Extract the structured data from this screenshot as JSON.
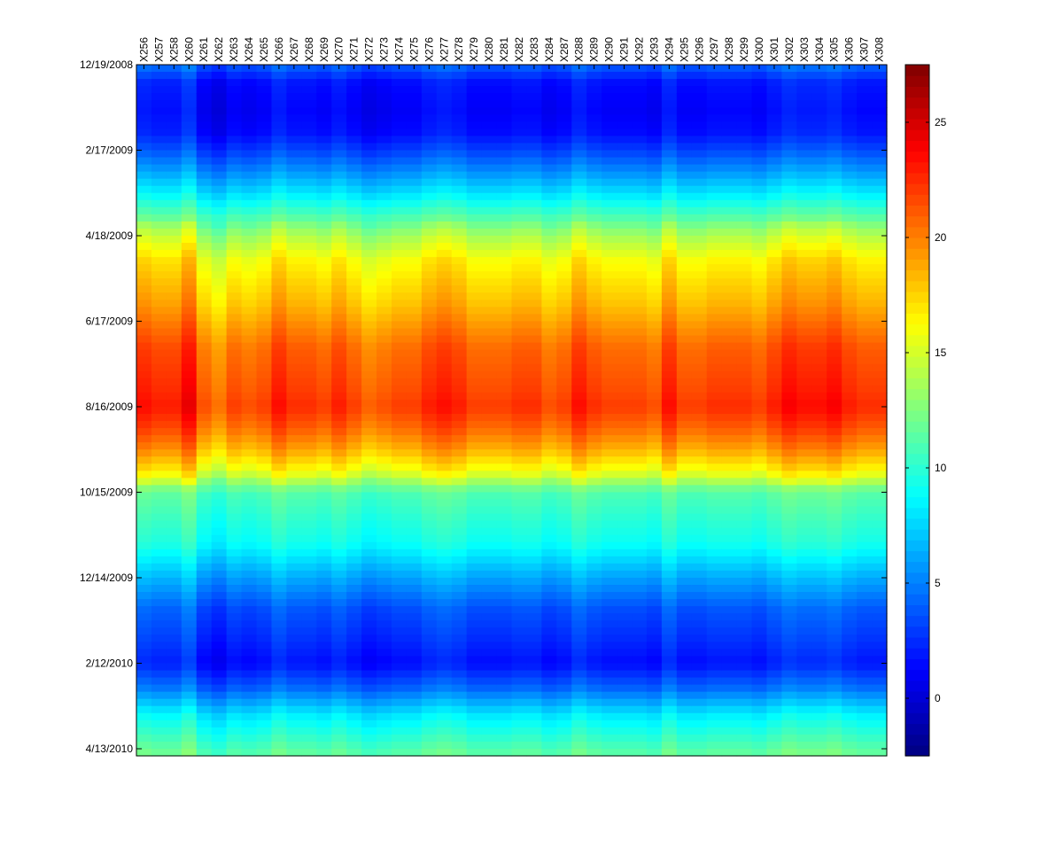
{
  "chart_data": {
    "type": "heatmap",
    "title": "",
    "xlabel": "",
    "ylabel": "",
    "columns": [
      "X256",
      "X257",
      "X258",
      "X260",
      "X261",
      "X262",
      "X263",
      "X264",
      "X265",
      "X266",
      "X267",
      "X268",
      "X269",
      "X270",
      "X271",
      "X272",
      "X273",
      "X274",
      "X275",
      "X276",
      "X277",
      "X278",
      "X279",
      "X280",
      "X281",
      "X282",
      "X283",
      "X284",
      "X287",
      "X288",
      "X289",
      "X290",
      "X291",
      "X292",
      "X293",
      "X294",
      "X295",
      "X296",
      "X297",
      "X298",
      "X299",
      "X300",
      "X301",
      "X302",
      "X303",
      "X304",
      "X305",
      "X306",
      "X307",
      "X308"
    ],
    "y_ticks": [
      "12/19/2008",
      "2/17/2009",
      "4/18/2009",
      "6/17/2009",
      "8/16/2009",
      "10/15/2009",
      "12/14/2009",
      "2/12/2010",
      "4/13/2010"
    ],
    "y_range": [
      "12/19/2008",
      "4/18/2010"
    ],
    "colorbar": {
      "range": [
        -2.5,
        27.5
      ],
      "ticks": [
        0,
        5,
        10,
        15,
        20,
        25
      ],
      "colormap": "jet"
    },
    "seasonal_profile": [
      {
        "date": "12/19/2008",
        "value": 4.0
      },
      {
        "date": "1/1/2009",
        "value": 1.5
      },
      {
        "date": "1/20/2009",
        "value": 1.0
      },
      {
        "date": "2/5/2009",
        "value": 1.5
      },
      {
        "date": "2/17/2009",
        "value": 3.0
      },
      {
        "date": "3/5/2009",
        "value": 5.5
      },
      {
        "date": "3/20/2009",
        "value": 8.0
      },
      {
        "date": "4/5/2009",
        "value": 11.0
      },
      {
        "date": "4/18/2009",
        "value": 13.5
      },
      {
        "date": "5/5/2009",
        "value": 16.0
      },
      {
        "date": "5/20/2009",
        "value": 17.0
      },
      {
        "date": "6/5/2009",
        "value": 18.0
      },
      {
        "date": "6/17/2009",
        "value": 19.0
      },
      {
        "date": "7/5/2009",
        "value": 20.5
      },
      {
        "date": "7/20/2009",
        "value": 21.0
      },
      {
        "date": "8/5/2009",
        "value": 21.5
      },
      {
        "date": "8/16/2009",
        "value": 22.0
      },
      {
        "date": "9/1/2009",
        "value": 20.5
      },
      {
        "date": "9/15/2009",
        "value": 18.5
      },
      {
        "date": "10/1/2009",
        "value": 15.5
      },
      {
        "date": "10/15/2009",
        "value": 11.0
      },
      {
        "date": "11/1/2009",
        "value": 10.0
      },
      {
        "date": "11/20/2009",
        "value": 9.0
      },
      {
        "date": "12/14/2009",
        "value": 6.0
      },
      {
        "date": "1/5/2010",
        "value": 3.5
      },
      {
        "date": "1/25/2010",
        "value": 2.5
      },
      {
        "date": "2/12/2010",
        "value": 1.5
      },
      {
        "date": "3/1/2010",
        "value": 4.0
      },
      {
        "date": "3/20/2010",
        "value": 8.0
      },
      {
        "date": "4/13/2010",
        "value": 11.0
      },
      {
        "date": "4/18/2010",
        "value": 11.5
      }
    ],
    "column_offsets": [
      1.5,
      1.0,
      1.0,
      2.5,
      -0.5,
      -1.5,
      0.0,
      -0.5,
      0.0,
      1.5,
      0.5,
      0.5,
      0.0,
      1.0,
      0.0,
      -1.0,
      -0.5,
      0.0,
      0.0,
      1.0,
      1.5,
      1.0,
      0.0,
      0.0,
      0.0,
      0.5,
      0.5,
      -0.5,
      0.0,
      1.5,
      0.5,
      0.0,
      0.0,
      0.0,
      -0.5,
      1.5,
      0.0,
      0.0,
      0.5,
      0.5,
      0.5,
      0.0,
      1.0,
      2.0,
      1.5,
      1.5,
      2.0,
      1.0,
      0.5,
      0.5
    ]
  },
  "colors": {
    "background": "#ffffff",
    "axis": "#000000"
  }
}
